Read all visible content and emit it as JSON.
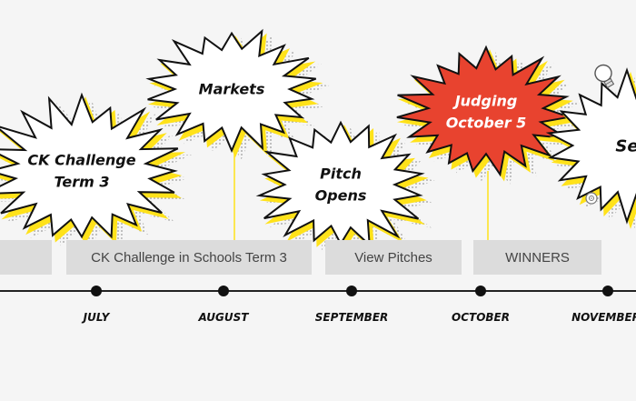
{
  "bursts": [
    {
      "lines": [
        "CK Challenge",
        "Term 3"
      ],
      "style": "white"
    },
    {
      "lines": [
        "Markets"
      ],
      "style": "white"
    },
    {
      "lines": [
        "Pitch",
        "Opens"
      ],
      "style": "white"
    },
    {
      "lines": [
        "Judging",
        "October 5"
      ],
      "style": "red"
    },
    {
      "lines": [
        "Se"
      ],
      "style": "white"
    }
  ],
  "buttons": [
    {
      "label": ""
    },
    {
      "label": "CK Challenge in Schools Term 3"
    },
    {
      "label": "View Pitches"
    },
    {
      "label": "WINNERS"
    }
  ],
  "months": [
    "JULY",
    "AUGUST",
    "SEPTEMBER",
    "OCTOBER",
    "NOVEMBER"
  ],
  "icons": [
    "lightbulb-icon",
    "target-icon"
  ],
  "colors": {
    "background": "#f5f5f5",
    "burst_fill": "#ffffff",
    "burst_outline": "#111111",
    "burst_shadow": "#ffe21a",
    "burst_highlight": "#e8432f",
    "button_bg": "#dcdcdc",
    "timeline": "#222222"
  }
}
